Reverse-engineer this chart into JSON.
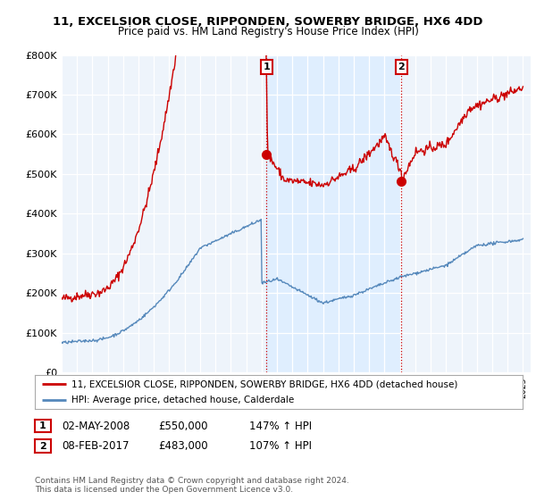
{
  "title1": "11, EXCELSIOR CLOSE, RIPPONDEN, SOWERBY BRIDGE, HX6 4DD",
  "title2": "Price paid vs. HM Land Registry's House Price Index (HPI)",
  "legend_line1": "11, EXCELSIOR CLOSE, RIPPONDEN, SOWERBY BRIDGE, HX6 4DD (detached house)",
  "legend_line2": "HPI: Average price, detached house, Calderdale",
  "annotation1_label": "1",
  "annotation1_date": "02-MAY-2008",
  "annotation1_price": "£550,000",
  "annotation1_hpi": "147% ↑ HPI",
  "annotation1_year": 2008.33,
  "annotation1_value": 550000,
  "annotation2_label": "2",
  "annotation2_date": "08-FEB-2017",
  "annotation2_price": "£483,000",
  "annotation2_hpi": "107% ↑ HPI",
  "annotation2_year": 2017.1,
  "annotation2_value": 483000,
  "copyright_text": "Contains HM Land Registry data © Crown copyright and database right 2024.\nThis data is licensed under the Open Government Licence v3.0.",
  "red_color": "#cc0000",
  "blue_color": "#5588bb",
  "shade_color": "#ddeeff",
  "bg_color": "#eef4fb",
  "plot_bg": "#ffffff",
  "grid_color": "#cccccc",
  "ylim_min": 0,
  "ylim_max": 800000,
  "xlim_min": 1995,
  "xlim_max": 2025.5
}
